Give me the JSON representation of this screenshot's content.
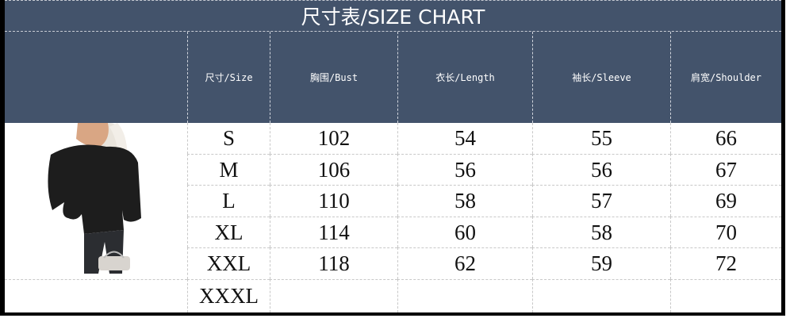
{
  "title": "尺寸表/SIZE CHART",
  "columns": [
    "尺寸/Size",
    "胸围/Bust",
    "衣长/Length",
    "袖长/Sleeve",
    "肩宽/Shoulder"
  ],
  "rows": [
    [
      "S",
      "102",
      "54",
      "55",
      "66"
    ],
    [
      "M",
      "106",
      "56",
      "56",
      "67"
    ],
    [
      "L",
      "110",
      "58",
      "57",
      "69"
    ],
    [
      "XL",
      "114",
      "60",
      "58",
      "70"
    ],
    [
      "XXL",
      "118",
      "62",
      "59",
      "72"
    ],
    [
      "XXXL",
      "",
      "",
      "",
      ""
    ]
  ],
  "colors": {
    "header_bg": "#43536b",
    "header_text": "#ffffff",
    "border": "#000000"
  },
  "image": "model-in-black-off-shoulder-sweater"
}
